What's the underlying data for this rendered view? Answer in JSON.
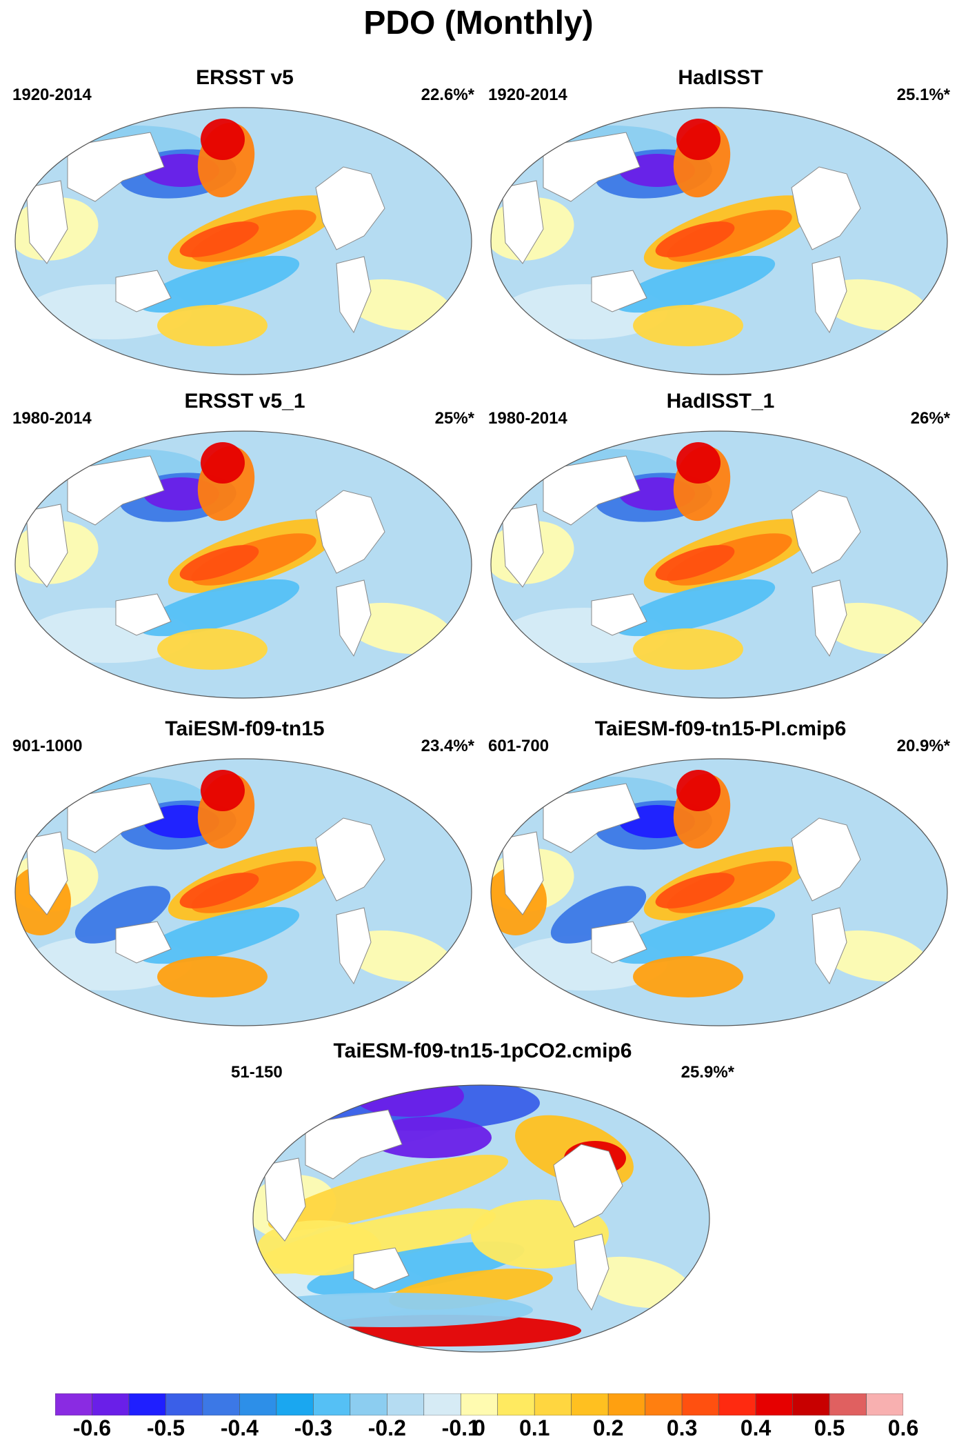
{
  "title": "PDO (Monthly)",
  "panels": [
    {
      "name": "ERSST v5",
      "period": "1920-2014",
      "variance": "22.6%*",
      "pattern": "obs"
    },
    {
      "name": "HadISST",
      "period": "1920-2014",
      "variance": "25.1%*",
      "pattern": "obs"
    },
    {
      "name": "ERSST v5_1",
      "period": "1980-2014",
      "variance": "25%*",
      "pattern": "obs"
    },
    {
      "name": "HadISST_1",
      "period": "1980-2014",
      "variance": "26%*",
      "pattern": "obs"
    },
    {
      "name": "TaiESM-f09-tn15",
      "period": "901-1000",
      "variance": "23.4%*",
      "pattern": "model"
    },
    {
      "name": "TaiESM-f09-tn15-PI.cmip6",
      "period": "601-700",
      "variance": "20.9%*",
      "pattern": "model"
    },
    {
      "name": "TaiESM-f09-tn15-1pCO2.cmip6",
      "period": "51-150",
      "variance": "25.9%*",
      "pattern": "co2"
    }
  ],
  "colorbar": {
    "colors": [
      "#8a2be2",
      "#6a1fe8",
      "#1f1fff",
      "#3a5fe8",
      "#3c78e6",
      "#2d8fe8",
      "#1aa7f0",
      "#55c0f5",
      "#8ccdf0",
      "#b5dcf2",
      "#d6ebf5",
      "#fffbb0",
      "#ffea60",
      "#ffd640",
      "#ffc020",
      "#ffa010",
      "#ff7f10",
      "#ff5010",
      "#ff2a10",
      "#e60000",
      "#c80000",
      "#e06060",
      "#f8b0b0"
    ],
    "labels": [
      "-0.6",
      "-0.5",
      "-0.4",
      "-0.3",
      "-0.2",
      "-0.1",
      "0",
      "0.1",
      "0.2",
      "0.3",
      "0.4",
      "0.5",
      "0.6"
    ]
  }
}
